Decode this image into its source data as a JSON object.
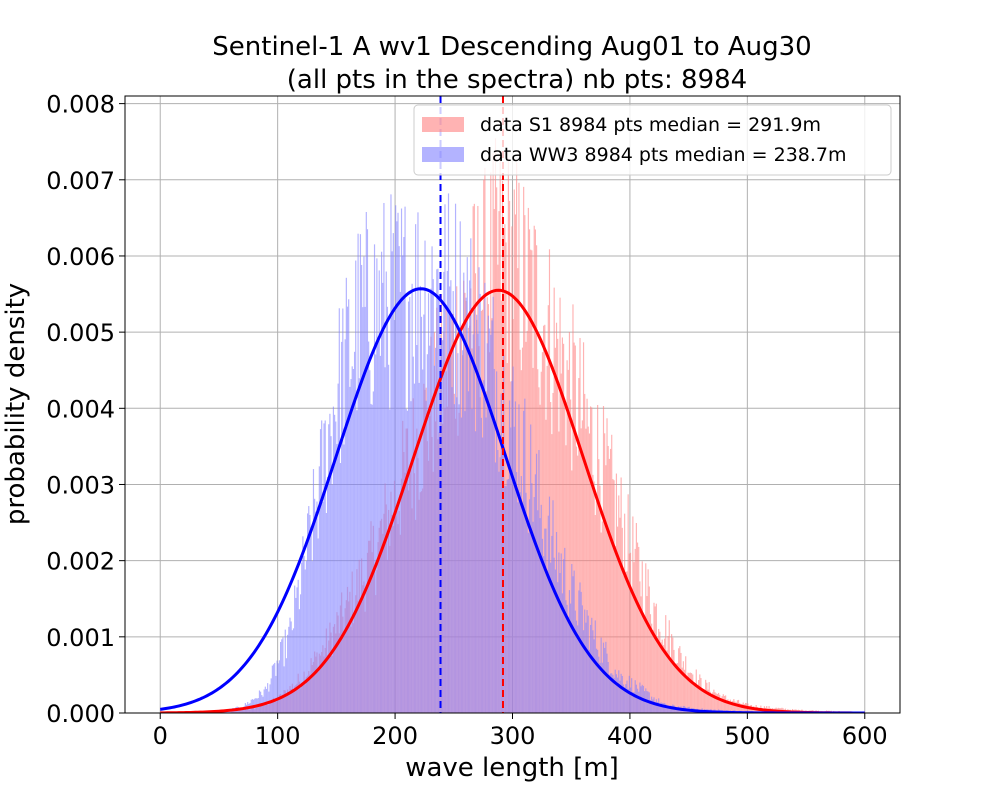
{
  "chart_data": {
    "type": "bar",
    "title_line1": "Sentinel-1 A wv1 Descending Aug01 to Aug30",
    "title_line2": "(all pts in the spectra) nb pts: 8984",
    "xlabel": "wave length [m]",
    "ylabel": "probability density",
    "xlim": [
      -30,
      630
    ],
    "ylim": [
      0,
      0.0081
    ],
    "xticks": [
      0,
      100,
      200,
      300,
      400,
      500,
      600
    ],
    "xtick_labels": [
      "0",
      "100",
      "200",
      "300",
      "400",
      "500",
      "600"
    ],
    "yticks": [
      0,
      0.001,
      0.002,
      0.003,
      0.004,
      0.005,
      0.006,
      0.007,
      0.008
    ],
    "ytick_labels": [
      "0.000",
      "0.001",
      "0.002",
      "0.003",
      "0.004",
      "0.005",
      "0.006",
      "0.007",
      "0.008"
    ],
    "grid": true,
    "legend_position": "top-right",
    "series": [
      {
        "name": "data S1 8984 pts median = 291.9m",
        "color": "#ff8080",
        "alpha": 0.6,
        "median": 291.9,
        "fit": {
          "type": "gaussian",
          "mean": 288,
          "std": 72,
          "peak": 0.00555,
          "color": "#ff0000"
        },
        "histogram_envelope": [
          [
            60,
            2e-05
          ],
          [
            80,
            6e-05
          ],
          [
            100,
            0.00018
          ],
          [
            120,
            0.00045
          ],
          [
            140,
            0.00085
          ],
          [
            160,
            0.0014
          ],
          [
            180,
            0.002
          ],
          [
            200,
            0.0028
          ],
          [
            220,
            0.0036
          ],
          [
            240,
            0.0044
          ],
          [
            260,
            0.0052
          ],
          [
            280,
            0.0058
          ],
          [
            290,
            0.0061
          ],
          [
            300,
            0.0059
          ],
          [
            320,
            0.0054
          ],
          [
            340,
            0.0047
          ],
          [
            360,
            0.0039
          ],
          [
            380,
            0.0031
          ],
          [
            400,
            0.0022
          ],
          [
            420,
            0.0014
          ],
          [
            440,
            0.0008
          ],
          [
            460,
            0.0004
          ],
          [
            480,
            0.0002
          ],
          [
            500,
            0.0001
          ],
          [
            540,
            4e-05
          ],
          [
            600,
            1e-05
          ]
        ]
      },
      {
        "name": "data WW3 8984 pts median = 238.7m",
        "color": "#8080ff",
        "alpha": 0.6,
        "median": 238.7,
        "fit": {
          "type": "gaussian",
          "mean": 222,
          "std": 72,
          "peak": 0.00557,
          "color": "#0000ff"
        },
        "histogram_envelope": [
          [
            50,
            2e-05
          ],
          [
            70,
            8e-05
          ],
          [
            90,
            0.0003
          ],
          [
            110,
            0.001
          ],
          [
            130,
            0.0025
          ],
          [
            150,
            0.0042
          ],
          [
            170,
            0.0052
          ],
          [
            190,
            0.0054
          ],
          [
            210,
            0.0055
          ],
          [
            230,
            0.0056
          ],
          [
            250,
            0.0055
          ],
          [
            270,
            0.005
          ],
          [
            290,
            0.0043
          ],
          [
            310,
            0.0034
          ],
          [
            330,
            0.0024
          ],
          [
            350,
            0.0016
          ],
          [
            370,
            0.001
          ],
          [
            390,
            0.0005
          ],
          [
            410,
            0.0003
          ],
          [
            430,
            0.0001
          ],
          [
            460,
            5e-05
          ],
          [
            500,
            2e-05
          ]
        ]
      }
    ]
  }
}
